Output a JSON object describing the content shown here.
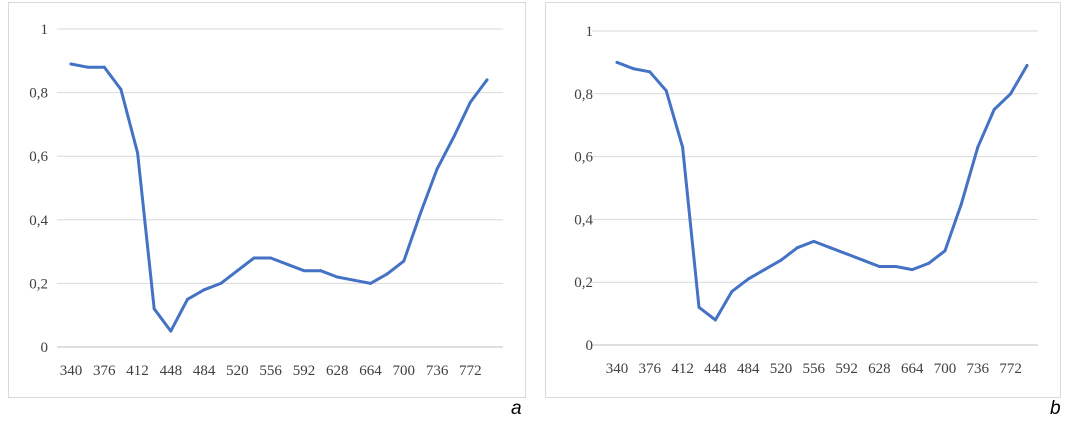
{
  "chart_data": [
    {
      "type": "line",
      "x": [
        340,
        358,
        376,
        394,
        412,
        430,
        448,
        466,
        484,
        502,
        520,
        538,
        556,
        574,
        592,
        610,
        628,
        646,
        664,
        682,
        700,
        718,
        736,
        754,
        772,
        790
      ],
      "x_tick_labels": [
        "340",
        "376",
        "412",
        "448",
        "484",
        "520",
        "556",
        "592",
        "628",
        "664",
        "700",
        "736",
        "772"
      ],
      "series": [
        {
          "values": [
            0.89,
            0.88,
            0.88,
            0.81,
            0.61,
            0.12,
            0.05,
            0.15,
            0.18,
            0.2,
            0.24,
            0.28,
            0.28,
            0.26,
            0.24,
            0.24,
            0.22,
            0.21,
            0.2,
            0.23,
            0.27,
            0.42,
            0.56,
            0.66,
            0.77,
            0.84
          ]
        }
      ],
      "ylim": [
        0,
        1
      ],
      "y_tick_labels": [
        "0",
        "0,2",
        "0,4",
        "0,6",
        "0,8",
        "1"
      ],
      "grid": "horizontal",
      "color": "#4472c4",
      "panel_label": "a"
    },
    {
      "type": "line",
      "x": [
        340,
        358,
        376,
        394,
        412,
        430,
        448,
        466,
        484,
        502,
        520,
        538,
        556,
        574,
        592,
        610,
        628,
        646,
        664,
        682,
        700,
        718,
        736,
        754,
        772,
        790
      ],
      "x_tick_labels": [
        "340",
        "376",
        "412",
        "448",
        "484",
        "520",
        "556",
        "592",
        "628",
        "664",
        "700",
        "736",
        "772"
      ],
      "series": [
        {
          "values": [
            0.9,
            0.88,
            0.87,
            0.81,
            0.63,
            0.12,
            0.08,
            0.17,
            0.21,
            0.24,
            0.27,
            0.31,
            0.33,
            0.31,
            0.29,
            0.27,
            0.25,
            0.25,
            0.24,
            0.26,
            0.3,
            0.45,
            0.63,
            0.75,
            0.8,
            0.89
          ]
        }
      ],
      "ylim": [
        0,
        1
      ],
      "y_tick_labels": [
        "0",
        "0,2",
        "0,4",
        "0,6",
        "0,8",
        "1"
      ],
      "grid": "horizontal",
      "color": "#4472c4",
      "panel_label": "b"
    }
  ]
}
